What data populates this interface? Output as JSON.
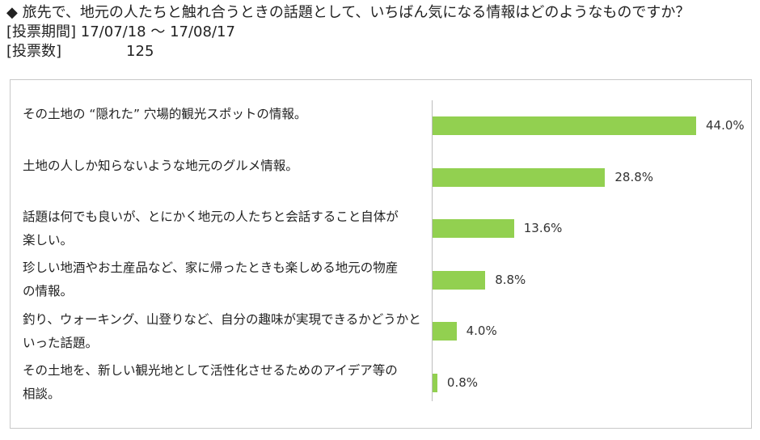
{
  "header": {
    "question": "◆ 旅先で、地元の人たちと触れ合うときの話題として、いちばん気になる情報はどのようなものですか？",
    "period_label": "[投票期間]",
    "period_value": "17/07/18 ～ 17/08/17",
    "votes_label": "[投票数]",
    "votes_value": "125"
  },
  "colors": {
    "bar": "#92d050",
    "axis": "#bdbdbd",
    "border": "#c8c8c8"
  },
  "chart_data": {
    "type": "bar",
    "orientation": "horizontal",
    "categories": [
      "その土地の “隠れた” 穴場的観光スポットの情報。",
      "土地の人しか知らないような地元のグルメ情報。",
      "話題は何でも良いが、とにかく地元の人たちと会話すること自体が楽しい。",
      "珍しい地酒やお土産品など、家に帰ったときも楽しめる地元の物産の情報。",
      "釣り、ウォーキング、山登りなど、自分の趣味が実現できるかどうかといった話題。",
      "その土地を、新しい観光地として活性化させるためのアイデア等の相談。"
    ],
    "category_lines": [
      [
        "その土地の “隠れた” 穴場的観光スポットの情報。"
      ],
      [
        "土地の人しか知らないような地元のグルメ情報。"
      ],
      [
        "話題は何でも良いが、とにかく地元の人たちと会話すること自体が",
        "楽しい。"
      ],
      [
        "珍しい地酒やお土産品など、家に帰ったときも楽しめる地元の物産",
        "の情報。"
      ],
      [
        "釣り、ウォーキング、山登りなど、自分の趣味が実現できるかどうかと",
        "いった話題。"
      ],
      [
        "その土地を、新しい観光地として活性化させるためのアイデア等の",
        "相談。"
      ]
    ],
    "values": [
      44.0,
      28.8,
      13.6,
      8.8,
      4.0,
      0.8
    ],
    "value_labels": [
      "44.0%",
      "28.8%",
      "13.6%",
      "8.8%",
      "4.0%",
      "0.8%"
    ],
    "unit": "%",
    "xlim": [
      0,
      44.0
    ],
    "grid": false,
    "legend": false
  }
}
